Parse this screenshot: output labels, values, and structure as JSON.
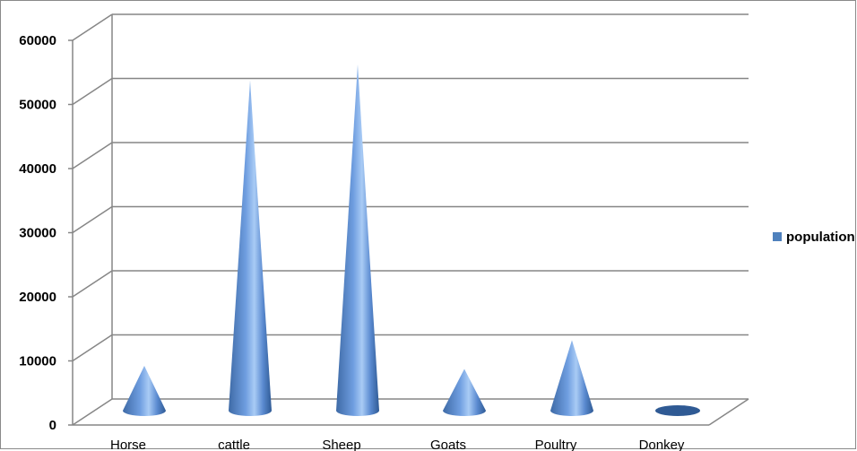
{
  "chart_data": {
    "type": "bar",
    "bar_shape": "cone",
    "categories": [
      "Horse",
      "cattle",
      "Sheep",
      "Goats",
      "Poultry",
      "Donkey"
    ],
    "series": [
      {
        "name": "population",
        "values": [
          7000,
          51500,
          54000,
          6500,
          11000,
          300
        ],
        "color": "#4f81bd"
      }
    ],
    "ylim": [
      0,
      60000
    ],
    "yticks": [
      0,
      10000,
      20000,
      30000,
      40000,
      50000,
      60000
    ],
    "grid": true,
    "legend_position": "right"
  }
}
